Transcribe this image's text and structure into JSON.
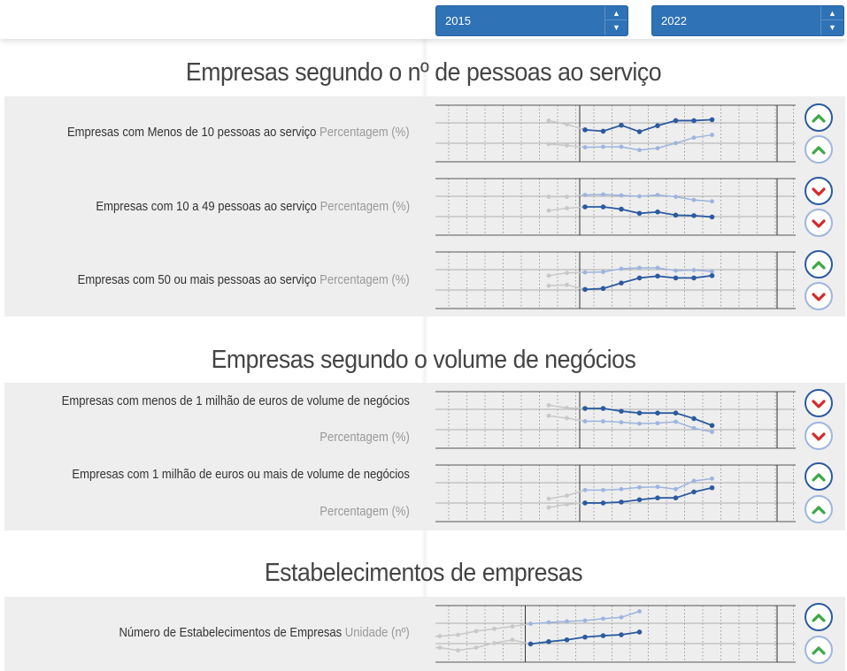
{
  "filters": {
    "start_year": "2015",
    "end_year": "2022"
  },
  "colors": {
    "dark_series": "#2b5aa0",
    "light_series": "#9db4de",
    "previous_period": "#c8c8c8",
    "trend_up": "#3aa844",
    "trend_down": "#d42a2a",
    "select_bg": "#2f72b6"
  },
  "sections": [
    {
      "title": "Empresas segundo o nº de pessoas ao serviço",
      "indicators": [
        {
          "name": "Empresas com Menos de 10 pessoas ao serviço",
          "unit": "Percentagem (%)",
          "trend_primary": "up",
          "trend_secondary": "up",
          "trend_primary_icon": "chevron-up-icon",
          "trend_secondary_icon": "chevron-up-icon"
        },
        {
          "name": "Empresas com 10 a 49 pessoas ao serviço",
          "unit": "Percentagem (%)",
          "trend_primary": "down",
          "trend_secondary": "down",
          "trend_primary_icon": "chevron-down-icon",
          "trend_secondary_icon": "chevron-down-icon"
        },
        {
          "name": "Empresas com 50 ou mais pessoas ao serviço",
          "unit": "Percentagem (%)",
          "trend_primary": "up",
          "trend_secondary": "down",
          "trend_primary_icon": "chevron-up-icon",
          "trend_secondary_icon": "chevron-down-icon"
        }
      ]
    },
    {
      "title": "Empresas segundo o volume de negócios",
      "indicators": [
        {
          "name": "Empresas com menos de 1 milhão de euros de volume de negócios",
          "unit": "Percentagem (%)",
          "trend_primary": "down",
          "trend_secondary": "down",
          "trend_primary_icon": "chevron-down-icon",
          "trend_secondary_icon": "chevron-down-icon"
        },
        {
          "name": "Empresas com 1 milhão de euros ou mais de volume de negócios",
          "unit": "Percentagem (%)",
          "trend_primary": "up",
          "trend_secondary": "up",
          "trend_primary_icon": "chevron-up-icon",
          "trend_secondary_icon": "chevron-up-icon"
        }
      ]
    },
    {
      "title": "Estabelecimentos de empresas",
      "indicators": [
        {
          "name": "Número de Estabelecimentos de Empresas",
          "unit": "Unidade (nº)",
          "trend_primary": "up",
          "trend_secondary": "up",
          "trend_primary_icon": "chevron-up-icon",
          "trend_secondary_icon": "chevron-up-icon"
        }
      ]
    }
  ],
  "chart_data": [
    {
      "type": "line",
      "indicator": "Empresas com Menos de 10 pessoas ao serviço",
      "series": [
        {
          "name": "dark",
          "start_index": 8,
          "values": [
            58,
            55,
            68,
            54,
            67,
            78,
            78,
            80
          ],
          "prev_values": [
            78,
            70
          ]
        },
        {
          "name": "light",
          "start_index": 8,
          "values": [
            20,
            21,
            21,
            14,
            18,
            29,
            41,
            47
          ],
          "prev_values": [
            27,
            24
          ]
        }
      ],
      "ylim": [
        0,
        100
      ]
    },
    {
      "type": "line",
      "indicator": "Empresas com 10 a 49 pessoas ao serviço",
      "series": [
        {
          "name": "light",
          "start_index": 8,
          "values": [
            76,
            77,
            75,
            73,
            76,
            72,
            65,
            62
          ],
          "prev_values": [
            72,
            72
          ]
        },
        {
          "name": "dark",
          "start_index": 8,
          "values": [
            50,
            50,
            45,
            36,
            39,
            32,
            31,
            28
          ],
          "prev_values": [
            42,
            47
          ]
        }
      ],
      "ylim": [
        0,
        100
      ]
    },
    {
      "type": "line",
      "indicator": "Empresas com 50 ou mais pessoas ao serviço",
      "series": [
        {
          "name": "light",
          "start_index": 8,
          "values": [
            67,
            68,
            75,
            77,
            77,
            71,
            72,
            69
          ],
          "prev_values": [
            60,
            66
          ]
        },
        {
          "name": "dark",
          "start_index": 8,
          "values": [
            30,
            32,
            44,
            55,
            59,
            55,
            55,
            60
          ],
          "prev_values": [
            38,
            40
          ]
        }
      ],
      "ylim": [
        0,
        100
      ]
    },
    {
      "type": "line",
      "indicator": "Empresas com menos de 1 milhão de euros de volume de negócios",
      "series": [
        {
          "name": "dark",
          "start_index": 8,
          "values": [
            75,
            75,
            69,
            65,
            65,
            65,
            53,
            38
          ],
          "prev_values": [
            82,
            76
          ]
        },
        {
          "name": "light",
          "start_index": 8,
          "values": [
            47,
            47,
            45,
            42,
            43,
            46,
            32,
            24
          ],
          "prev_values": [
            59,
            54
          ]
        }
      ],
      "ylim": [
        0,
        100
      ]
    },
    {
      "type": "line",
      "indicator": "Empresas com 1 milhão de euros ou mais de volume de negócios",
      "series": [
        {
          "name": "light",
          "start_index": 8,
          "values": [
            57,
            57,
            59,
            63,
            64,
            59,
            77,
            82
          ],
          "prev_values": [
            38,
            45
          ]
        },
        {
          "name": "dark",
          "start_index": 8,
          "values": [
            29,
            29,
            31,
            36,
            40,
            40,
            53,
            62
          ],
          "prev_values": [
            19,
            26
          ]
        }
      ],
      "ylim": [
        0,
        100
      ]
    },
    {
      "type": "line",
      "indicator": "Número de Estabelecimentos de Empresas",
      "series": [
        {
          "name": "light",
          "start_index": 5,
          "values": [
            72,
            75,
            77,
            79,
            83,
            86,
            99
          ],
          "prev_values": [
            52,
            46,
            45,
            44,
            45,
            48,
            56,
            61,
            66
          ]
        },
        {
          "name": "dark",
          "start_index": 5,
          "values": [
            28,
            33,
            37,
            43,
            46,
            48,
            54
          ],
          "prev_values": [
            27,
            23,
            20,
            20,
            14,
            20,
            30,
            37
          ]
        }
      ],
      "ylim": [
        0,
        100
      ]
    }
  ]
}
